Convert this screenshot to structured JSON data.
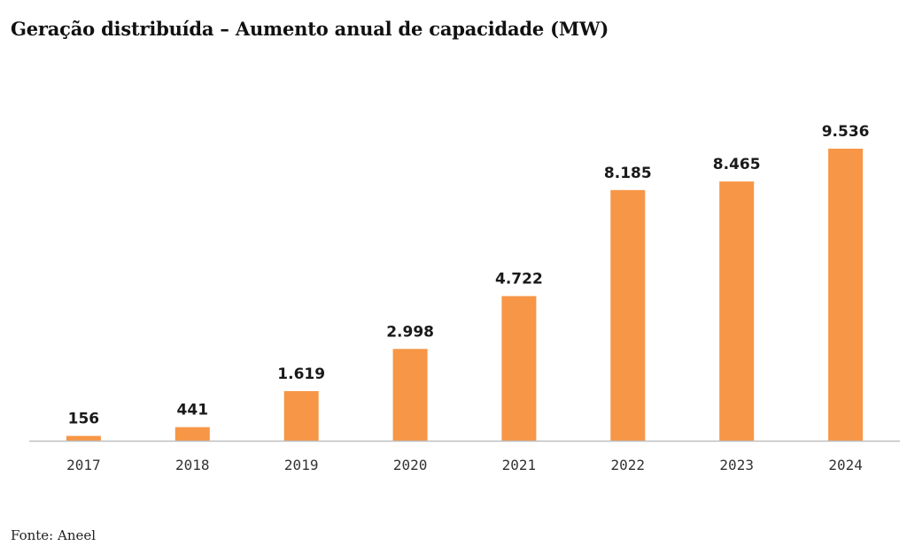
{
  "chart_data": {
    "type": "bar",
    "title": "Geração distribuída – Aumento anual de capacidade (MW)",
    "xlabel": "",
    "ylabel": "",
    "categories": [
      "2017",
      "2018",
      "2019",
      "2020",
      "2021",
      "2022",
      "2023",
      "2024"
    ],
    "values": [
      156,
      441,
      1619,
      2998,
      4722,
      8185,
      8465,
      9536
    ],
    "data_labels": [
      "156",
      "441",
      "1.619",
      "2.998",
      "4.722",
      "8.185",
      "8.465",
      "9.536"
    ],
    "ylim": [
      0,
      9536
    ],
    "bar_color": "#F79646",
    "axis_color": "#BFBFBF",
    "grid": false,
    "legend": "none"
  },
  "source": "Fonte: Aneel"
}
